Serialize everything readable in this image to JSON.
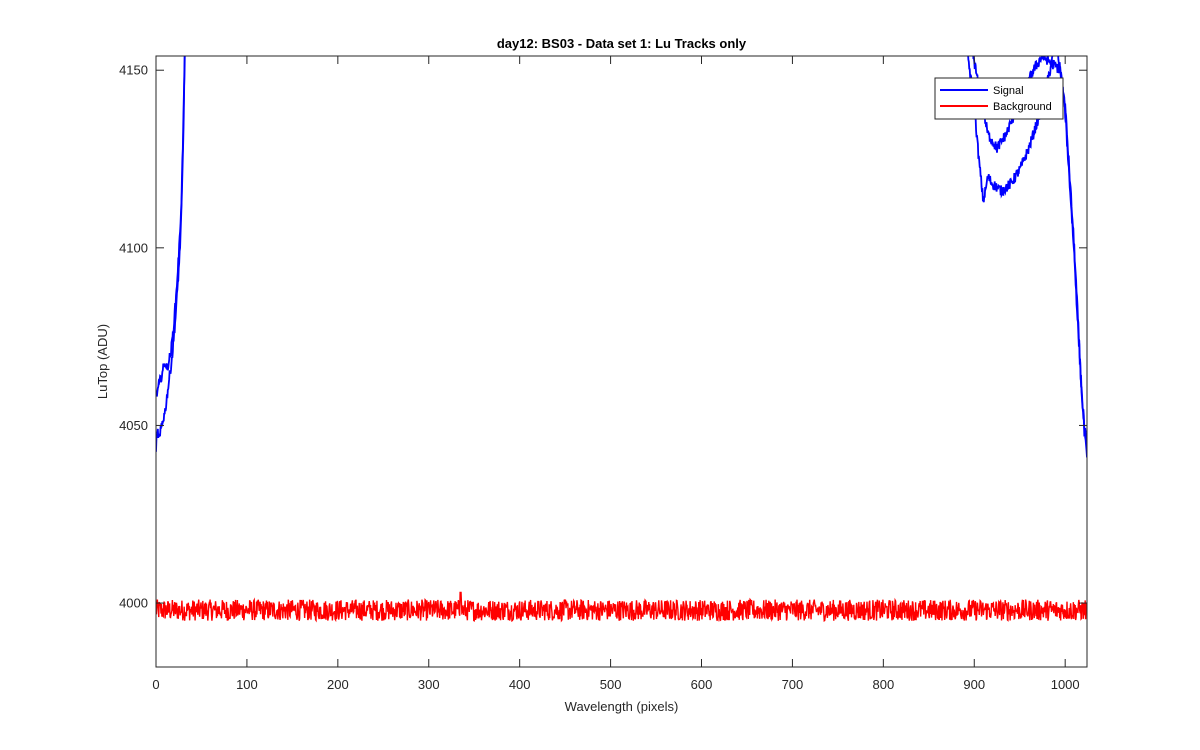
{
  "chart_data": {
    "type": "line",
    "title": "day12: BS03 - Data set 1: Lu Tracks only",
    "xlabel": "Wavelength (pixels)",
    "ylabel": "LuTop (ADU)",
    "xlim": [
      0,
      1024
    ],
    "ylim": [
      3982,
      4154
    ],
    "xticks": [
      0,
      100,
      200,
      300,
      400,
      500,
      600,
      700,
      800,
      900,
      1000
    ],
    "yticks": [
      4000,
      4050,
      4100,
      4150
    ],
    "legend_position": "top-right",
    "grid": false,
    "series": [
      {
        "name": "Signal",
        "color": "#0000ff",
        "note_segments": "signal traces exceed the top of the axis between the edges",
        "lines": [
          {
            "x": [
              0,
              2,
              4,
              6,
              8,
              10,
              12,
              14,
              16,
              18,
              20,
              22,
              24,
              26,
              28,
              30,
              32
            ],
            "y": [
              4044,
              4048,
              4046,
              4050,
              4052,
              4054,
              4058,
              4062,
              4066,
              4070,
              4076,
              4082,
              4090,
              4098,
              4110,
              4130,
              4160
            ]
          },
          {
            "x": [
              0,
              2,
              4,
              6,
              8,
              10,
              12,
              14,
              16,
              18,
              20,
              22,
              24,
              26,
              28,
              30,
              32
            ],
            "y": [
              4058,
              4060,
              4062,
              4064,
              4066,
              4068,
              4066,
              4068,
              4070,
              4074,
              4080,
              4086,
              4094,
              4102,
              4114,
              4134,
              4160
            ]
          },
          {
            "x": [
              890,
              900,
              905,
              910,
              915,
              920,
              930,
              940,
              950,
              960,
              970,
              980,
              990,
              1000,
              1005,
              1010,
              1014,
              1018,
              1021,
              1024
            ],
            "y": [
              4160,
              4140,
              4125,
              4113,
              4120,
              4118,
              4116,
              4118,
              4122,
              4128,
              4136,
              4146,
              4158,
              4140,
              4120,
              4100,
              4080,
              4060,
              4048,
              4041
            ]
          },
          {
            "x": [
              895,
              905,
              915,
              925,
              935,
              945,
              955,
              965,
              975,
              985,
              995,
              1000,
              1005,
              1010,
              1014,
              1018,
              1021,
              1024
            ],
            "y": [
              4160,
              4145,
              4132,
              4128,
              4132,
              4138,
              4144,
              4150,
              4154,
              4152,
              4150,
              4138,
              4118,
              4098,
              4078,
              4060,
              4050,
              4044
            ]
          }
        ]
      },
      {
        "name": "Background",
        "color": "#ff0000",
        "mean": 3998,
        "noise_amplitude": 3,
        "x_range": [
          0,
          1024
        ],
        "peak": {
          "x": 335,
          "y": 4003
        }
      }
    ]
  }
}
